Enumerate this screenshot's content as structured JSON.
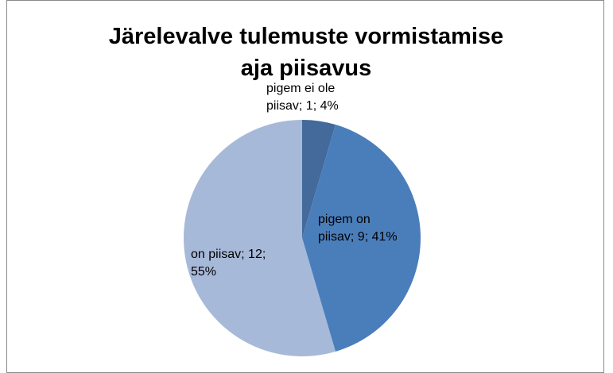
{
  "chart_data": {
    "type": "pie",
    "title": "Järelevalve tulemuste vormistamise aja piisavus",
    "categories": [
      "pigem ei ole piisav",
      "pigem on piisav",
      "on piisav"
    ],
    "values": [
      1,
      9,
      12
    ],
    "value_labels": [
      "pigem ei ole piisav; 1; 4%",
      "pigem on piisav; 9; 41%",
      "on piisav; 12; 55%"
    ],
    "colors": [
      "#44699b",
      "#4a7ebb",
      "#a7b9d8"
    ]
  }
}
